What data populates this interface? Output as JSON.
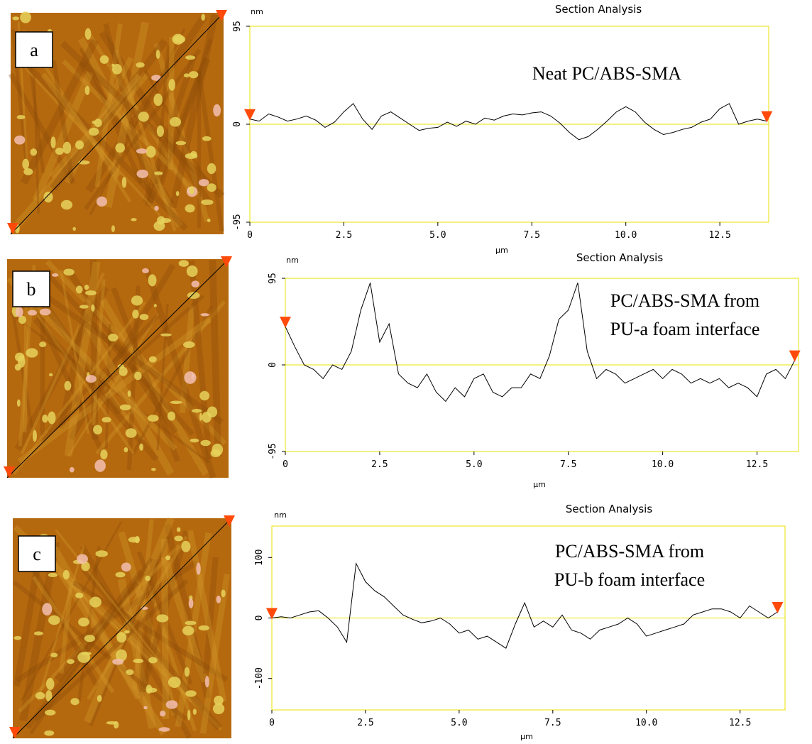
{
  "chart_data": [
    {
      "type": "line",
      "panel": "a",
      "title": "Section Analysis",
      "y_label": "nm",
      "x_label": "µm",
      "annotation": [
        "Neat PC/ABS-SMA"
      ],
      "xlim": [
        0,
        13.8
      ],
      "ylim": [
        -95,
        95
      ],
      "xticks": [
        0,
        2.5,
        {
          "value": 5,
          "label": "5.0"
        },
        7.5,
        {
          "value": 10,
          "label": "10.0"
        },
        12.5
      ],
      "yticks": [
        -95,
        0,
        95
      ],
      "x": [
        0,
        0.25,
        0.5,
        0.75,
        1,
        1.25,
        1.5,
        1.75,
        2,
        2.25,
        2.5,
        2.75,
        3,
        3.25,
        3.5,
        3.75,
        4,
        4.25,
        4.5,
        4.75,
        5,
        5.25,
        5.5,
        5.75,
        6,
        6.25,
        6.5,
        6.75,
        7,
        7.25,
        7.5,
        7.75,
        8,
        8.25,
        8.5,
        8.75,
        9,
        9.25,
        9.5,
        9.75,
        10,
        10.25,
        10.5,
        10.75,
        11,
        11.25,
        11.5,
        11.75,
        12,
        12.25,
        12.5,
        12.75,
        13,
        13.25,
        13.5,
        13.75
      ],
      "series": [
        {
          "color": "#000000",
          "values": [
            5,
            3,
            10,
            7,
            3,
            5,
            8,
            4,
            -3,
            2,
            12,
            20,
            5,
            -5,
            8,
            12,
            6,
            0,
            -6,
            -4,
            -3,
            2,
            -2,
            3,
            0,
            6,
            4,
            8,
            10,
            9,
            11,
            12,
            8,
            1,
            -8,
            -15,
            -12,
            -5,
            3,
            12,
            17,
            12,
            2,
            -5,
            -10,
            -8,
            -5,
            -3,
            2,
            5,
            15,
            20,
            0,
            3,
            5,
            3
          ]
        }
      ]
    },
    {
      "type": "line",
      "panel": "b",
      "title": "Section Analysis",
      "y_label": "nm",
      "x_label": "µm",
      "annotation": [
        "PC/ABS-SMA from",
        "PU-a foam interface"
      ],
      "xlim": [
        0,
        13.6
      ],
      "ylim": [
        -95,
        95
      ],
      "xticks": [
        0,
        2.5,
        {
          "value": 5,
          "label": "5.0"
        },
        7.5,
        {
          "value": 10,
          "label": "10.0"
        },
        12.5
      ],
      "yticks": [
        -95,
        0,
        95
      ],
      "x": [
        0,
        0.25,
        0.5,
        0.75,
        1,
        1.25,
        1.5,
        1.75,
        2,
        2.25,
        2.5,
        2.75,
        3,
        3.25,
        3.5,
        3.75,
        4,
        4.25,
        4.5,
        4.75,
        5,
        5.25,
        5.5,
        5.75,
        6,
        6.25,
        6.5,
        6.75,
        7,
        7.25,
        7.5,
        7.75,
        8,
        8.25,
        8.5,
        8.75,
        9,
        9.25,
        9.5,
        9.75,
        10,
        10.25,
        10.5,
        10.75,
        11,
        11.25,
        11.5,
        11.75,
        12,
        12.25,
        12.5,
        12.75,
        13,
        13.25,
        13.5
      ],
      "series": [
        {
          "color": "#000000",
          "values": [
            42,
            20,
            0,
            -5,
            -15,
            0,
            -5,
            15,
            60,
            90,
            25,
            45,
            -10,
            -20,
            -25,
            -10,
            -30,
            -40,
            -25,
            -35,
            -15,
            -10,
            -30,
            -35,
            -25,
            -25,
            -10,
            -15,
            10,
            50,
            60,
            90,
            15,
            -15,
            -5,
            -10,
            -20,
            -15,
            -10,
            -5,
            -15,
            -5,
            -10,
            -20,
            -15,
            -20,
            -15,
            -25,
            -20,
            -25,
            -35,
            -10,
            -5,
            -15,
            5
          ]
        }
      ]
    },
    {
      "type": "line",
      "panel": "c",
      "title": "Section Analysis",
      "y_label": "nm",
      "x_label": "µm",
      "annotation": [
        "PC/ABS-SMA from",
        "PU-b foam interface"
      ],
      "xlim": [
        0,
        13.7
      ],
      "ylim": [
        -152,
        152
      ],
      "xticks": [
        0,
        2.5,
        {
          "value": 5,
          "label": "5.0"
        },
        7.5,
        {
          "value": 10,
          "label": "10.0"
        },
        12.5
      ],
      "yticks": [
        -100,
        0,
        100
      ],
      "x": [
        0,
        0.25,
        0.5,
        0.75,
        1,
        1.25,
        1.5,
        1.75,
        2,
        2.25,
        2.5,
        2.75,
        3,
        3.25,
        3.5,
        3.75,
        4,
        4.25,
        4.5,
        4.75,
        5,
        5.25,
        5.5,
        5.75,
        6,
        6.25,
        6.5,
        6.75,
        7,
        7.25,
        7.5,
        7.75,
        8,
        8.25,
        8.5,
        8.75,
        9,
        9.25,
        9.5,
        9.75,
        10,
        10.25,
        10.5,
        10.75,
        11,
        11.25,
        11.5,
        11.75,
        12,
        12.25,
        12.5,
        12.75,
        13,
        13.25,
        13.5
      ],
      "series": [
        {
          "color": "#000000",
          "values": [
            0,
            2,
            0,
            5,
            10,
            12,
            0,
            -15,
            -40,
            90,
            60,
            45,
            35,
            20,
            5,
            -2,
            -8,
            -5,
            0,
            -10,
            -25,
            -20,
            -35,
            -30,
            -40,
            -50,
            -10,
            25,
            -15,
            -5,
            -15,
            5,
            -20,
            -25,
            -35,
            -20,
            -15,
            -10,
            0,
            -10,
            -30,
            -25,
            -20,
            -15,
            -10,
            5,
            10,
            15,
            15,
            10,
            0,
            20,
            10,
            0,
            10
          ]
        }
      ]
    }
  ]
}
